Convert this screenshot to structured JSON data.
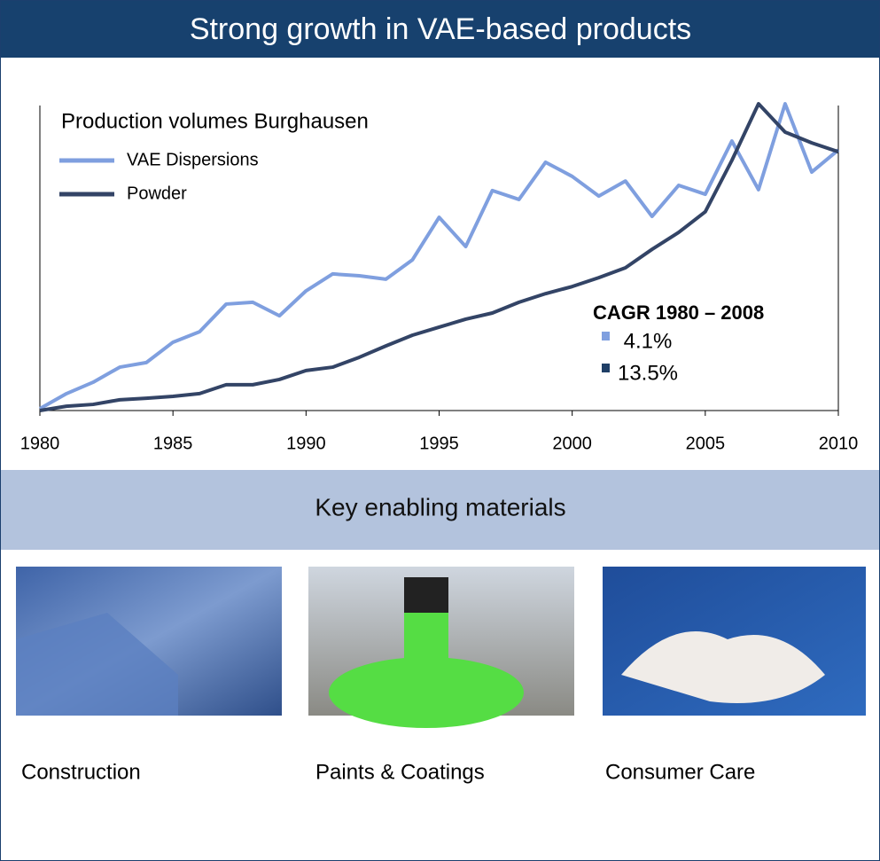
{
  "header": {
    "title": "Strong growth in VAE-based products"
  },
  "chart_data": {
    "type": "line",
    "title": "Production volumes Burghausen",
    "x": [
      1980,
      1981,
      1982,
      1983,
      1984,
      1985,
      1986,
      1987,
      1988,
      1989,
      1990,
      1991,
      1992,
      1993,
      1994,
      1995,
      1996,
      1997,
      1998,
      1999,
      2000,
      2001,
      2002,
      2003,
      2004,
      2005,
      2006,
      2007,
      2008,
      2009,
      2010
    ],
    "series": [
      {
        "name": "VAE Dispersions",
        "color": "#7f9fdf",
        "values": [
          0.6,
          5.5,
          9.2,
          14.1,
          15.6,
          22.2,
          25.6,
          34.6,
          35.2,
          30.8,
          38.9,
          44.4,
          43.8,
          42.7,
          49.0,
          62.8,
          53.3,
          71.5,
          68.6,
          80.7,
          76.1,
          69.7,
          74.6,
          63.1,
          73.2,
          70.3,
          87.6,
          71.8,
          99.7,
          77.5,
          84.7
        ]
      },
      {
        "name": "Powder",
        "color": "#334466",
        "values": [
          0,
          1.4,
          2.0,
          3.5,
          4.0,
          4.6,
          5.5,
          8.4,
          8.4,
          10.1,
          13.0,
          14.1,
          17.3,
          21.0,
          24.5,
          27.1,
          29.7,
          31.7,
          35.2,
          38.0,
          40.3,
          43.2,
          46.4,
          52.4,
          57.9,
          64.6,
          81.3,
          99.7,
          90.5,
          87.0,
          84.1
        ]
      }
    ],
    "xlim": [
      1980,
      2010
    ],
    "xticks": [
      1980,
      1985,
      1990,
      1995,
      2000,
      2005,
      2010
    ],
    "ylim": [
      0,
      100
    ],
    "annotation": {
      "title": "CAGR 1980 – 2008",
      "items": [
        {
          "label": "4.1%",
          "color": "#7f9fdf"
        },
        {
          "label": "13.5%",
          "color": "#1f3f66"
        }
      ]
    }
  },
  "section": {
    "title": "Key enabling materials"
  },
  "tiles": [
    {
      "caption": "Construction"
    },
    {
      "caption": "Paints & Coatings"
    },
    {
      "caption": "Consumer Care"
    }
  ]
}
